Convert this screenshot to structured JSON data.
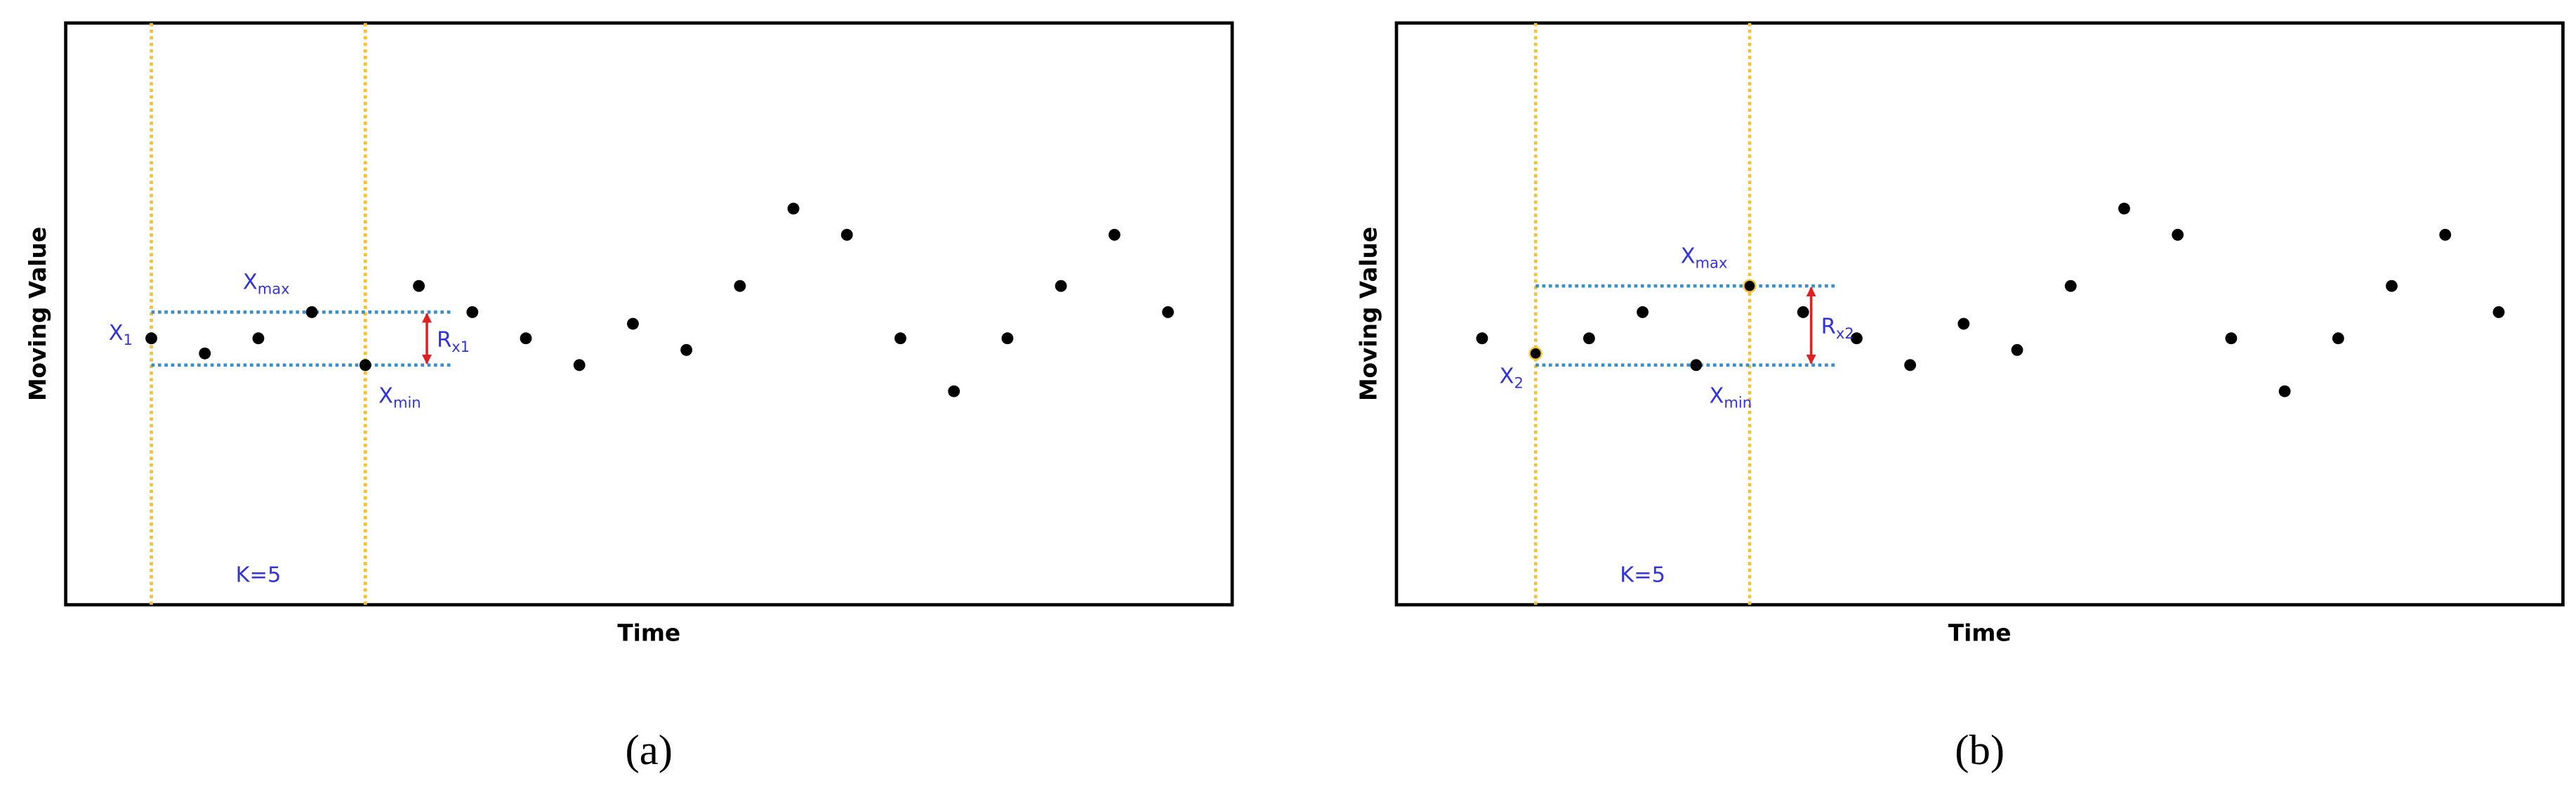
{
  "chart_data": [
    {
      "type": "scatter",
      "x_label": "Time",
      "y_label": "Moving Value",
      "caption": "(a)",
      "x": [
        1,
        2,
        3,
        4,
        5,
        6,
        7,
        8,
        9,
        10,
        11,
        12,
        13,
        14,
        15,
        16,
        17,
        18,
        19,
        20
      ],
      "series": [
        {
          "color": "#000000",
          "values": [
            45.8,
            43.2,
            45.8,
            50.3,
            41.2,
            54.8,
            50.3,
            45.8,
            41.2,
            48.3,
            43.8,
            54.8,
            68.1,
            63.6,
            45.8,
            36.7,
            45.8,
            54.8,
            63.6,
            50.3
          ]
        }
      ],
      "xlim": [
        -0.6,
        21.2
      ],
      "ylim": [
        0,
        100
      ],
      "window": {
        "label": "K=5",
        "start": 1,
        "end": 5,
        "line_color": "#f2c230",
        "band_color": "#3a8fc8",
        "range_color": "#e02020",
        "start_label": {
          "text": "X",
          "sub": "1"
        },
        "max_label": {
          "text": "X",
          "sub": "max"
        },
        "min_label": {
          "text": "X",
          "sub": "min"
        },
        "range_label": {
          "text": "R",
          "sub": "x1"
        }
      }
    },
    {
      "type": "scatter",
      "x_label": "Time",
      "y_label": "Moving Value",
      "caption": "(b)",
      "x": [
        1,
        2,
        3,
        4,
        5,
        6,
        7,
        8,
        9,
        10,
        11,
        12,
        13,
        14,
        15,
        16,
        17,
        18,
        19,
        20
      ],
      "series": [
        {
          "color": "#000000",
          "values": [
            45.8,
            43.2,
            45.8,
            50.3,
            41.2,
            54.8,
            50.3,
            45.8,
            41.2,
            48.3,
            43.8,
            54.8,
            68.1,
            63.6,
            45.8,
            36.7,
            45.8,
            54.8,
            63.6,
            50.3
          ]
        }
      ],
      "xlim": [
        -0.6,
        21.2
      ],
      "ylim": [
        0,
        100
      ],
      "window": {
        "label": "K=5",
        "start": 2,
        "end": 6,
        "line_color": "#f2c230",
        "band_color": "#3a8fc8",
        "range_color": "#e02020",
        "start_label": {
          "text": "X",
          "sub": "2"
        },
        "max_label": {
          "text": "X",
          "sub": "max"
        },
        "min_label": {
          "text": "X",
          "sub": "min"
        },
        "range_label": {
          "text": "R",
          "sub": "x2"
        }
      }
    }
  ]
}
